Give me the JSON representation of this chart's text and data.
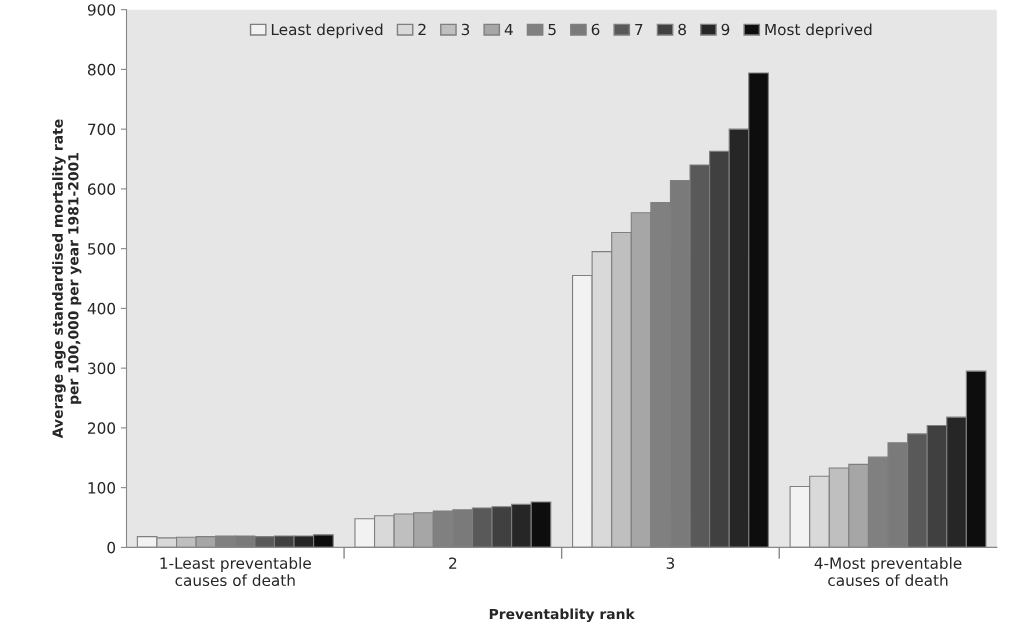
{
  "chart_data": {
    "type": "bar",
    "xlabel": "Preventablity rank",
    "ylabel": "Average age standardised mortality rate\nper 100,000 per year 1981-2001",
    "categories": [
      "1-Least preventable\ncauses of death",
      "2",
      "3",
      "4-Most preventable\ncauses of death"
    ],
    "series": [
      {
        "name": "Least deprived",
        "color": "#f2f2f2",
        "values": [
          18,
          48,
          455,
          102
        ]
      },
      {
        "name": "2",
        "color": "#d9d9d9",
        "values": [
          16,
          53,
          495,
          119
        ]
      },
      {
        "name": "3",
        "color": "#bfbfbf",
        "values": [
          17,
          56,
          527,
          133
        ]
      },
      {
        "name": "4",
        "color": "#a6a6a6",
        "values": [
          18,
          58,
          560,
          139
        ]
      },
      {
        "name": "5",
        "color": "#808080",
        "values": [
          19,
          61,
          577,
          151
        ]
      },
      {
        "name": "6",
        "color": "#7a7a7a",
        "values": [
          19,
          63,
          614,
          175
        ]
      },
      {
        "name": "7",
        "color": "#595959",
        "values": [
          18,
          66,
          640,
          190
        ]
      },
      {
        "name": "8",
        "color": "#404040",
        "values": [
          19,
          68,
          663,
          204
        ]
      },
      {
        "name": "9",
        "color": "#262626",
        "values": [
          19,
          72,
          700,
          218
        ]
      },
      {
        "name": "Most deprived",
        "color": "#0d0d0d",
        "values": [
          21,
          76,
          794,
          295
        ]
      }
    ],
    "ylim": [
      0,
      900
    ],
    "yticks": [
      0,
      100,
      200,
      300,
      400,
      500,
      600,
      700,
      800,
      900
    ],
    "grid": false,
    "legend": "top"
  }
}
